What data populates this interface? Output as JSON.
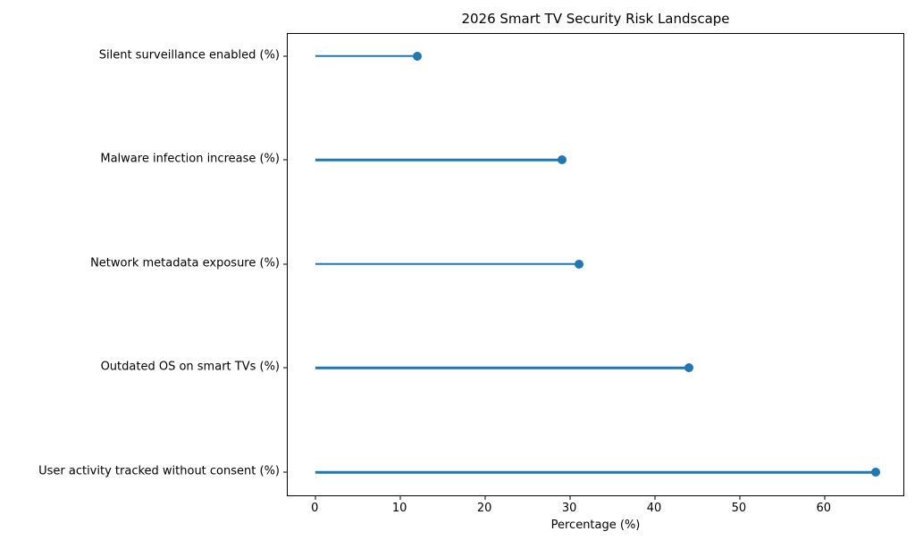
{
  "figure": {
    "background_color": "#ffffff"
  },
  "chart_data": {
    "type": "lollipop",
    "orientation": "horizontal",
    "title": "2026 Smart TV Security Risk Landscape",
    "xlabel": "Percentage (%)",
    "ylabel": "",
    "categories": [
      "Silent surveillance enabled (%)",
      "Malware infection increase (%)",
      "Network metadata exposure (%)",
      "Outdated OS on smart TVs (%)",
      "User activity tracked without consent (%)"
    ],
    "values": [
      12,
      29,
      31,
      44,
      66
    ],
    "stem_start": 0,
    "xticks": [
      0,
      10,
      20,
      30,
      40,
      50,
      60
    ],
    "xlim": [
      -3.3,
      69.5
    ],
    "ypos": [
      4,
      3,
      2,
      1,
      0
    ],
    "ylim": [
      -0.24,
      4.21
    ],
    "grid": false,
    "legend": "none",
    "marker": "circle",
    "accent_color": "#1f77b4",
    "axis_color": "#000000",
    "text_color": "#000000"
  }
}
